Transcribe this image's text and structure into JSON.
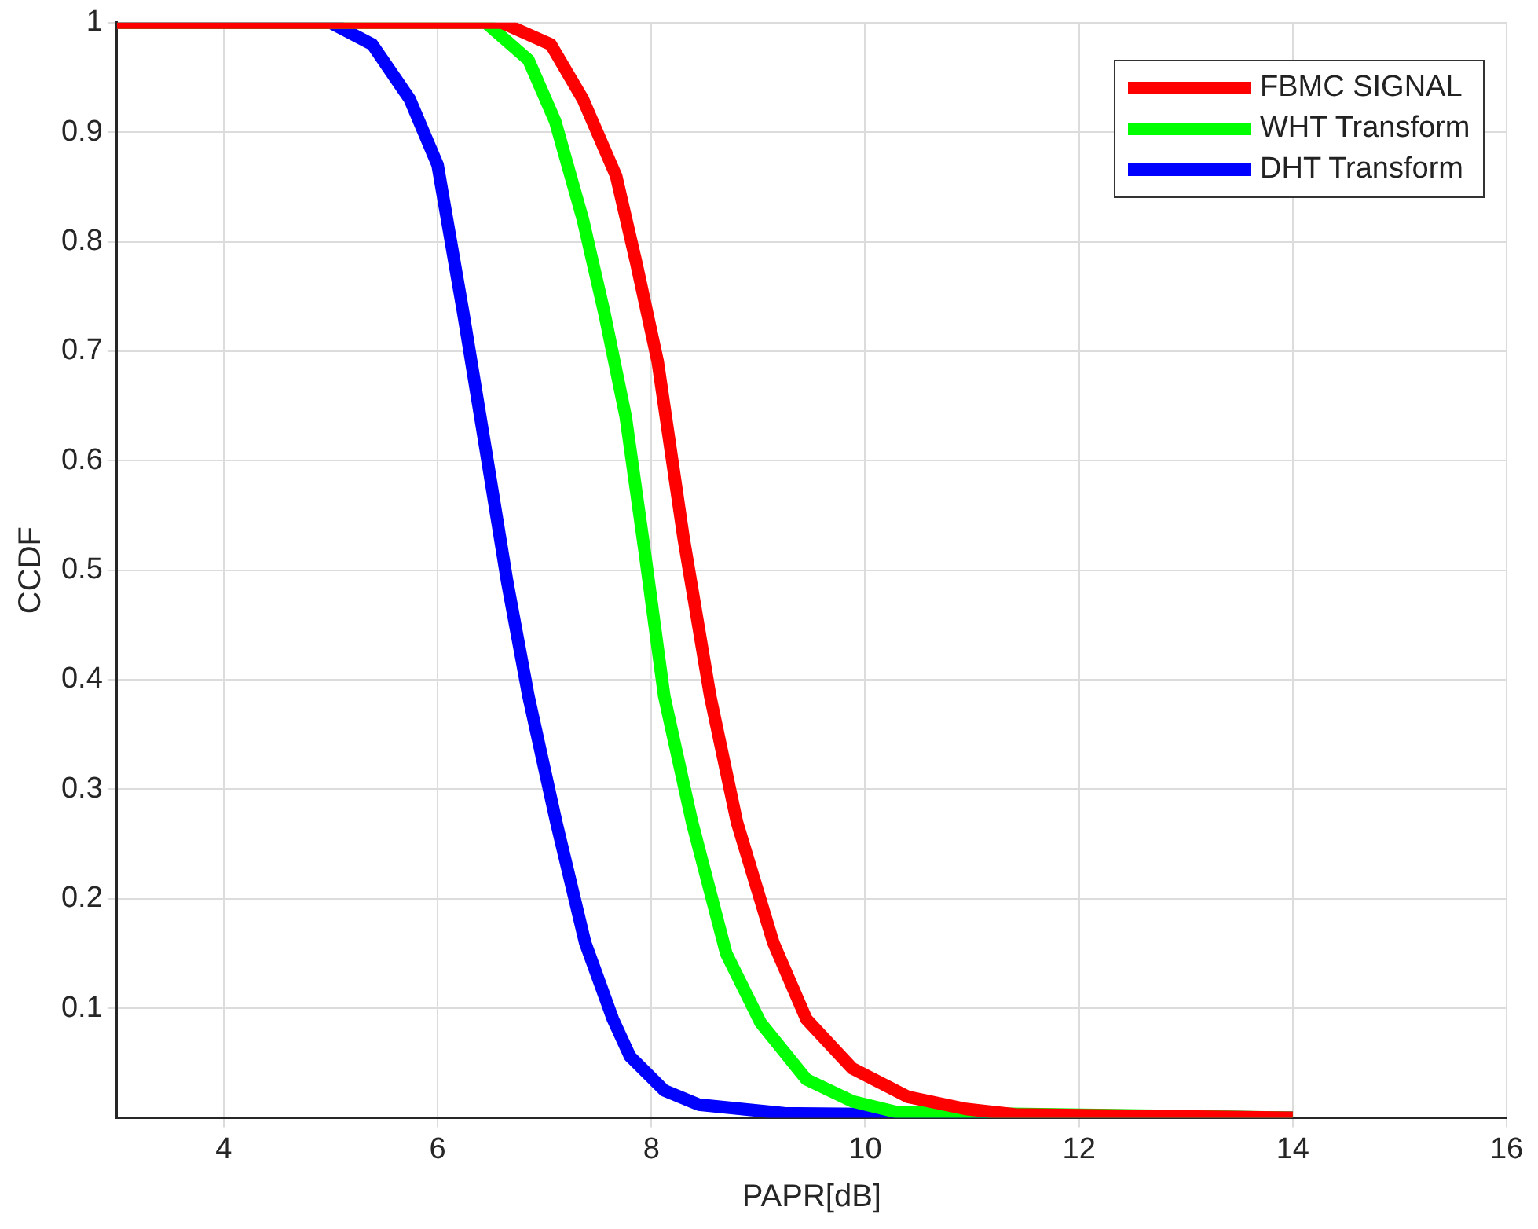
{
  "chart_data": {
    "type": "line",
    "xlabel": "PAPR[dB]",
    "ylabel": "CCDF",
    "xlim": [
      3,
      16
    ],
    "xticks": [
      4,
      6,
      8,
      10,
      12,
      14,
      16
    ],
    "ylim": [
      0,
      1
    ],
    "yticks": [
      0.1,
      0.2,
      0.3,
      0.4,
      0.5,
      0.6,
      0.7,
      0.8,
      0.9,
      1
    ],
    "grid": true,
    "legend": "top right",
    "marker": "none",
    "line_style": "solid",
    "series": [
      {
        "name": "FBMC SIGNAL",
        "color": "#ff0000",
        "x": [
          3,
          6.6,
          7.06,
          7.36,
          7.67,
          7.86,
          8.06,
          8.3,
          8.55,
          8.8,
          9.14,
          9.45,
          9.88,
          10.4,
          10.94,
          11.4,
          14
        ],
        "values": [
          1,
          1,
          0.98,
          0.93,
          0.86,
          0.78,
          0.69,
          0.53,
          0.385,
          0.27,
          0.16,
          0.09,
          0.045,
          0.019,
          0.008,
          0.003,
          0
        ]
      },
      {
        "name": "WHT Transform",
        "color": "#00ff00",
        "x": [
          3,
          6.45,
          6.85,
          7.1,
          7.36,
          7.56,
          7.76,
          7.94,
          8.12,
          8.38,
          8.7,
          9.02,
          9.45,
          9.88,
          10.3,
          14
        ],
        "values": [
          1,
          1,
          0.966,
          0.91,
          0.82,
          0.735,
          0.64,
          0.515,
          0.385,
          0.27,
          0.15,
          0.087,
          0.035,
          0.015,
          0.005,
          0
        ]
      },
      {
        "name": "DHT Transform",
        "color": "#0000ff",
        "x": [
          3,
          5.0,
          5.39,
          5.74,
          6.0,
          6.24,
          6.45,
          6.65,
          6.85,
          7.11,
          7.38,
          7.64,
          7.8,
          8.12,
          8.44,
          9.24,
          14
        ],
        "values": [
          1,
          1,
          0.98,
          0.93,
          0.87,
          0.735,
          0.61,
          0.49,
          0.385,
          0.27,
          0.16,
          0.09,
          0.056,
          0.025,
          0.012,
          0.004,
          0
        ]
      }
    ]
  }
}
